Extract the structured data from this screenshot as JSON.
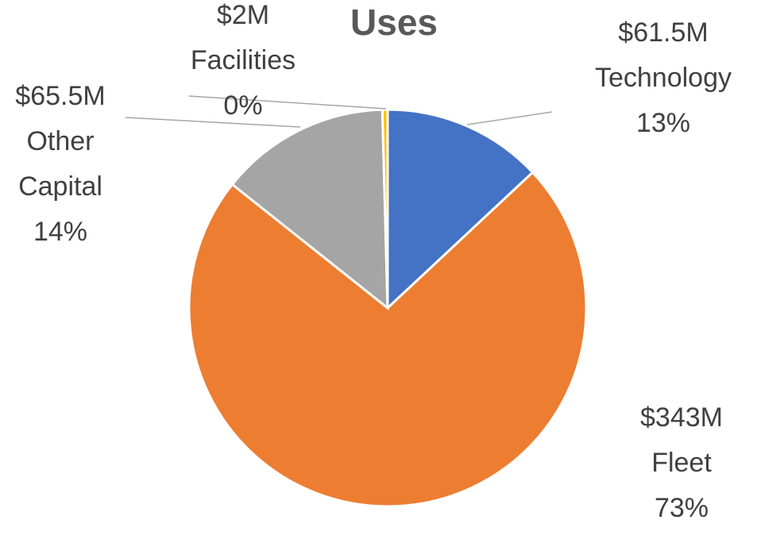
{
  "chart_data": {
    "type": "pie",
    "title": "Uses",
    "start_angle_deg": 0,
    "direction": "clockwise",
    "slices": [
      {
        "category": "Technology",
        "amount": "$61.5M",
        "value": 61.5,
        "percent": "13%",
        "color": "#4472C4"
      },
      {
        "category": "Fleet",
        "amount": "$343M",
        "value": 343,
        "percent": "73%",
        "color": "#ED7D31"
      },
      {
        "category": "Other Capital",
        "amount": "$65.5M",
        "value": 65.5,
        "percent": "14%",
        "color": "#A5A5A5"
      },
      {
        "category": "Facilities",
        "amount": "$2M",
        "value": 2,
        "percent": "0%",
        "color": "#FFC000"
      }
    ]
  }
}
